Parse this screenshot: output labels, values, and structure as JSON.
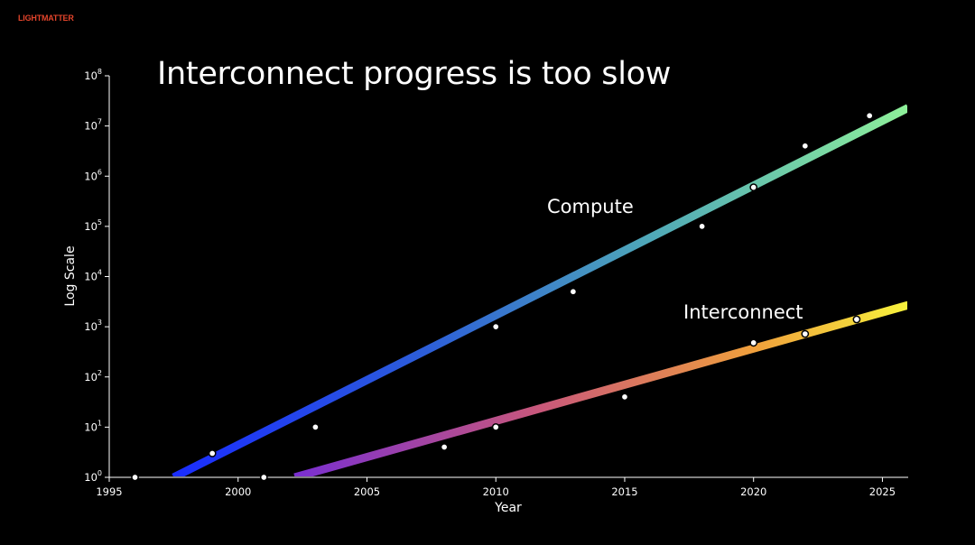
{
  "brand": "LIGHTMATTER",
  "colors": {
    "background": "#000000",
    "brand": "#e2442b",
    "compute_gradient": [
      "#1a2cff",
      "#2d5fd8",
      "#4fa8b8",
      "#8ef09a"
    ],
    "interconnect_gradient": [
      "#7a2fd0",
      "#c9587a",
      "#f0a03c",
      "#f7f23c"
    ]
  },
  "chart_data": {
    "type": "scatter",
    "title": "Interconnect progress is too slow",
    "xlabel": "Year",
    "ylabel": "Log Scale",
    "y_scale": "log",
    "xlim": [
      1995,
      2026
    ],
    "ylim": [
      1,
      100000000
    ],
    "x_ticks": [
      1995,
      2000,
      2005,
      2010,
      2015,
      2020,
      2025
    ],
    "y_ticks": [
      {
        "base": "10",
        "exp": "0",
        "value": 1
      },
      {
        "base": "10",
        "exp": "1",
        "value": 10
      },
      {
        "base": "10",
        "exp": "2",
        "value": 100
      },
      {
        "base": "10",
        "exp": "3",
        "value": 1000
      },
      {
        "base": "10",
        "exp": "4",
        "value": 10000
      },
      {
        "base": "10",
        "exp": "5",
        "value": 100000
      },
      {
        "base": "10",
        "exp": "6",
        "value": 1000000
      },
      {
        "base": "10",
        "exp": "7",
        "value": 10000000
      },
      {
        "base": "10",
        "exp": "8",
        "value": 100000000
      }
    ],
    "series": [
      {
        "name": "Compute",
        "trend": {
          "x": [
            1997.5,
            2026
          ],
          "y": [
            1,
            23000000
          ]
        },
        "points": [
          {
            "x": 1996,
            "y": 1
          },
          {
            "x": 1999,
            "y": 3
          },
          {
            "x": 2001,
            "y": 1
          },
          {
            "x": 2003,
            "y": 10
          },
          {
            "x": 2010,
            "y": 1000
          },
          {
            "x": 2013,
            "y": 5000
          },
          {
            "x": 2018,
            "y": 100000
          },
          {
            "x": 2020,
            "y": 600000
          },
          {
            "x": 2022,
            "y": 4000000
          },
          {
            "x": 2024.5,
            "y": 16000000
          }
        ]
      },
      {
        "name": "Interconnect",
        "trend": {
          "x": [
            2002.2,
            2026
          ],
          "y": [
            1,
            2700
          ]
        },
        "points": [
          {
            "x": 2008,
            "y": 4
          },
          {
            "x": 2010,
            "y": 10
          },
          {
            "x": 2015,
            "y": 40
          },
          {
            "x": 2020,
            "y": 480
          },
          {
            "x": 2022,
            "y": 720
          },
          {
            "x": 2024,
            "y": 1400
          }
        ]
      }
    ],
    "grid": false,
    "legend": "inline labels"
  }
}
